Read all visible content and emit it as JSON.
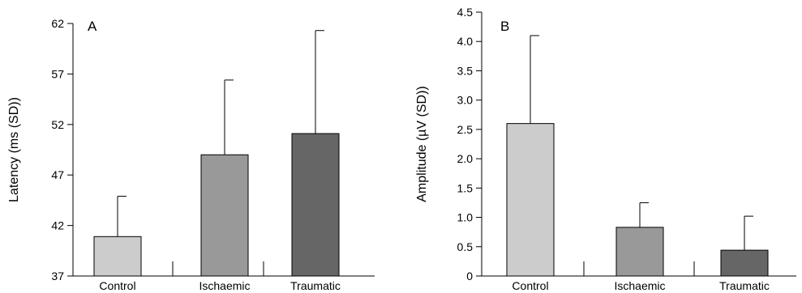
{
  "chart_data": [
    {
      "type": "bar",
      "panel_label": "A",
      "ylabel": "Latency (ms (SD))",
      "categories": [
        "Control",
        "Ischaemic",
        "Traumatic"
      ],
      "values": [
        40.9,
        49.0,
        51.1
      ],
      "sd": [
        4.0,
        7.4,
        10.2
      ],
      "ylim": [
        37,
        62
      ],
      "yticks": [
        "37",
        "42",
        "47",
        "52",
        "57",
        "62"
      ],
      "ytick_values": [
        37,
        42,
        47,
        52,
        57,
        62
      ],
      "colors": [
        "#cccccc",
        "#999999",
        "#666666"
      ]
    },
    {
      "type": "bar",
      "panel_label": "B",
      "ylabel": "Amplitude (µV (SD))",
      "categories": [
        "Control",
        "Ischaemic",
        "Traumatic"
      ],
      "values": [
        2.6,
        0.83,
        0.44
      ],
      "sd": [
        1.5,
        0.42,
        0.58
      ],
      "ylim": [
        0,
        4.5
      ],
      "yticks": [
        "0",
        "0.5",
        "1.0",
        "1.5",
        "2.0",
        "2.5",
        "3.0",
        "3.5",
        "4.0",
        "4.5"
      ],
      "ytick_values": [
        0,
        0.5,
        1.0,
        1.5,
        2.0,
        2.5,
        3.0,
        3.5,
        4.0,
        4.5
      ],
      "colors": [
        "#cccccc",
        "#999999",
        "#666666"
      ]
    }
  ]
}
